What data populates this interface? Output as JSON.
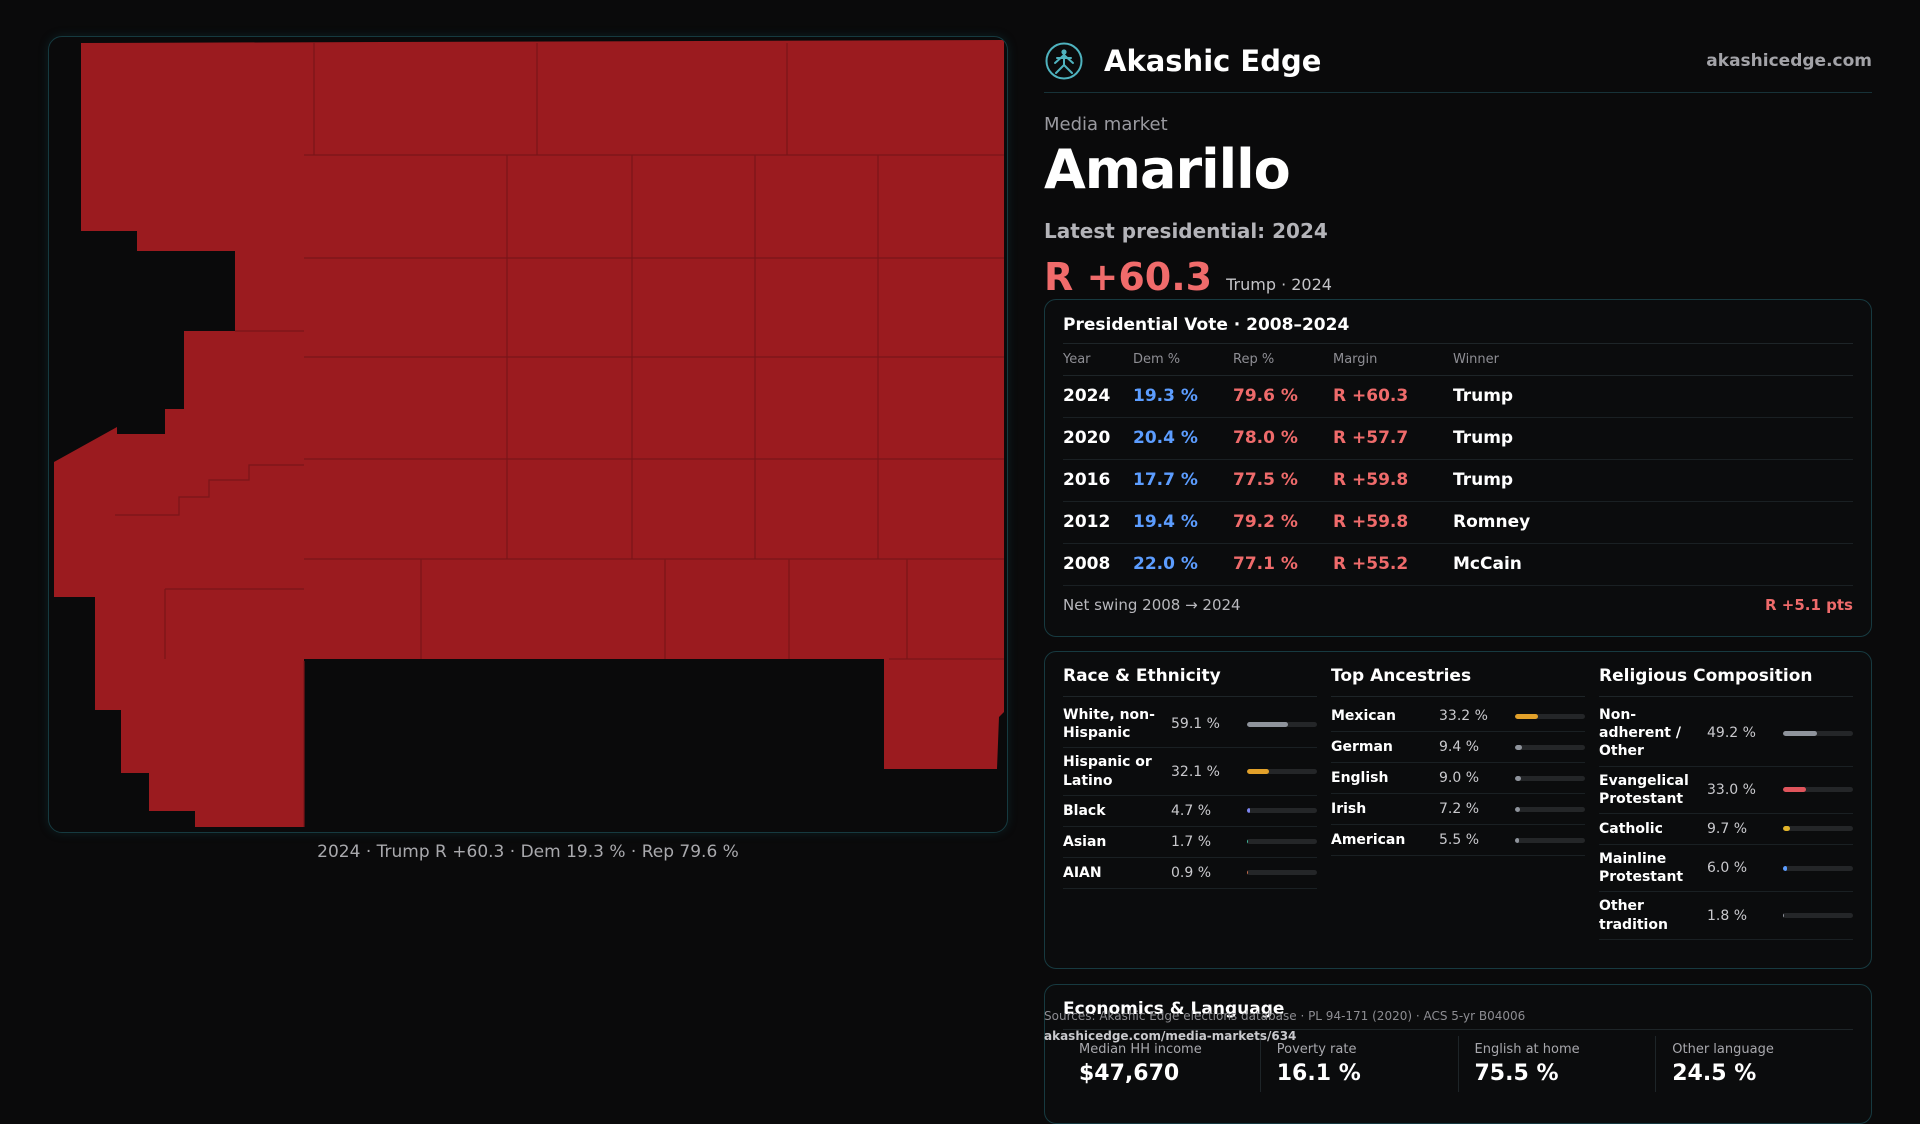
{
  "brand": {
    "name": "Akashic Edge",
    "url": "akashicedge.com"
  },
  "header": {
    "kicker": "Media market",
    "title": "Amarillo",
    "latest_label": "Latest presidential: 2024",
    "margin": "R +60.3",
    "margin_sub": "Trump · 2024"
  },
  "map": {
    "fill_color": "#9b1b1f",
    "caption": "2024 · Trump R +60.3 · Dem 19.3 % · Rep 79.6 %"
  },
  "vote": {
    "title": "Presidential Vote · 2008–2024",
    "columns": [
      "Year",
      "Dem %",
      "Rep %",
      "Margin",
      "Winner"
    ],
    "rows": [
      {
        "year": "2024",
        "dem": "19.3 %",
        "rep": "79.6 %",
        "margin": "R +60.3",
        "winner": "Trump"
      },
      {
        "year": "2020",
        "dem": "20.4 %",
        "rep": "78.0 %",
        "margin": "R +57.7",
        "winner": "Trump"
      },
      {
        "year": "2016",
        "dem": "17.7 %",
        "rep": "77.5 %",
        "margin": "R +59.8",
        "winner": "Trump"
      },
      {
        "year": "2012",
        "dem": "19.4 %",
        "rep": "79.2 %",
        "margin": "R +59.8",
        "winner": "Romney"
      },
      {
        "year": "2008",
        "dem": "22.0 %",
        "rep": "77.1 %",
        "margin": "R +55.2",
        "winner": "McCain"
      }
    ],
    "swing_label": "Net swing 2008 → 2024",
    "swing_value": "R +5.1 pts"
  },
  "race": {
    "title": "Race & Ethnicity",
    "items": [
      {
        "label": "White, non-Hispanic",
        "value": "59.1 %",
        "pct": 59.1,
        "color": "#8f949c"
      },
      {
        "label": "Hispanic or Latino",
        "value": "32.1 %",
        "pct": 32.1,
        "color": "#e2a12a"
      },
      {
        "label": "Black",
        "value": "4.7 %",
        "pct": 4.7,
        "color": "#7d86f2"
      },
      {
        "label": "Asian",
        "value": "1.7 %",
        "pct": 1.7,
        "color": "#3fb89a"
      },
      {
        "label": "AIAN",
        "value": "0.9 %",
        "pct": 0.9,
        "color": "#c46a4a"
      }
    ]
  },
  "ancestry": {
    "title": "Top Ancestries",
    "items": [
      {
        "label": "Mexican",
        "value": "33.2 %",
        "pct": 33.2,
        "color": "#e2a12a"
      },
      {
        "label": "German",
        "value": "9.4 %",
        "pct": 9.4,
        "color": "#8f949c"
      },
      {
        "label": "English",
        "value": "9.0 %",
        "pct": 9.0,
        "color": "#8f949c"
      },
      {
        "label": "Irish",
        "value": "7.2 %",
        "pct": 7.2,
        "color": "#8f949c"
      },
      {
        "label": "American",
        "value": "5.5 %",
        "pct": 5.5,
        "color": "#8f949c"
      }
    ]
  },
  "religion": {
    "title": "Religious Composition",
    "items": [
      {
        "label": "Non-adherent / Other",
        "value": "49.2 %",
        "pct": 49.2,
        "color": "#8f949c"
      },
      {
        "label": "Evangelical Protestant",
        "value": "33.0 %",
        "pct": 33.0,
        "color": "#e0555c"
      },
      {
        "label": "Catholic",
        "value": "9.7 %",
        "pct": 9.7,
        "color": "#e2b42a"
      },
      {
        "label": "Mainline Protestant",
        "value": "6.0 %",
        "pct": 6.0,
        "color": "#5c9dff"
      },
      {
        "label": "Other tradition",
        "value": "1.8 %",
        "pct": 1.8,
        "color": "#8f949c"
      }
    ]
  },
  "economics": {
    "title": "Economics & Language",
    "cells": [
      {
        "label": "Median HH income",
        "value": "$47,670"
      },
      {
        "label": "Poverty rate",
        "value": "16.1 %"
      },
      {
        "label": "English at home",
        "value": "75.5 %"
      },
      {
        "label": "Other language",
        "value": "24.5 %"
      }
    ]
  },
  "sources": {
    "text": "Sources: Akashic Edge elections database · PL 94-171 (2020) · ACS 5-yr B04006",
    "url": "akashicedge.com/media-markets/634"
  }
}
